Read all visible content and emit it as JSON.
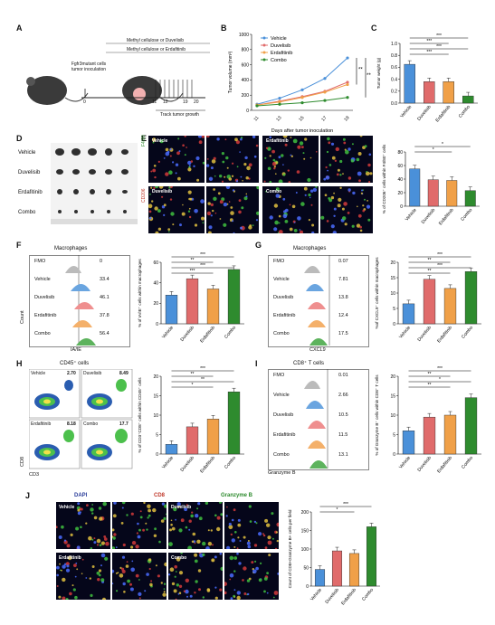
{
  "panels": {
    "A": {
      "letter": "A",
      "lines": [
        "Methyl cellulose or Duvelisib",
        "Methyl cellulose or Erdafitinib"
      ],
      "cells_label": "Fgfr3mutant cells tumor inoculation",
      "timepoints": [
        "0",
        "11",
        "12",
        "19",
        "20"
      ],
      "track_label": "Track tumor growth"
    },
    "B": {
      "letter": "B",
      "chart_data": {
        "type": "line",
        "ylabel": "Tumor volume (mm³)",
        "xlabel": "Days after tumor inoculation",
        "x": [
          "11",
          "13",
          "15",
          "17",
          "19"
        ],
        "ylim": [
          0,
          1000
        ],
        "yticks": [
          "0",
          "200",
          "400",
          "600",
          "800",
          "1000"
        ],
        "series": [
          {
            "name": "Vehicle",
            "color": "#4a90d9",
            "values": [
              80,
              160,
              270,
              420,
              690
            ]
          },
          {
            "name": "Duvelisib",
            "color": "#e06b6b",
            "values": [
              70,
              120,
              180,
              250,
              370
            ]
          },
          {
            "name": "Erdafitinib",
            "color": "#f0a048",
            "values": [
              70,
              110,
              170,
              240,
              340
            ]
          },
          {
            "name": "Combo",
            "color": "#2e8b2e",
            "values": [
              60,
              80,
              100,
              130,
              170
            ]
          }
        ],
        "sig": [
          "**",
          "***"
        ]
      }
    },
    "C": {
      "letter": "C",
      "chart_data": {
        "type": "bar",
        "ylabel": "Tumor weight (g)",
        "categories": [
          "Vehicle",
          "Duvelisib",
          "Erdafitinib",
          "Combo"
        ],
        "values": [
          0.65,
          0.36,
          0.36,
          0.12
        ],
        "ylim": [
          0,
          1.0
        ],
        "yticks": [
          "0.0",
          "0.2",
          "0.4",
          "0.6",
          "0.8",
          "1.0"
        ],
        "colors": [
          "#4a90d9",
          "#e06b6b",
          "#f0a048",
          "#2e8b2e"
        ],
        "sig": [
          "***",
          "***",
          "***",
          "***"
        ]
      }
    },
    "D": {
      "letter": "D",
      "rows": [
        "Vehicle",
        "Duvelisib",
        "Erdafitinib",
        "Combo"
      ]
    },
    "E": {
      "letter": "E",
      "stain_top": "F4/80",
      "stain_bottom": "CD206",
      "images": [
        "Vehicle",
        "Erdafitinib",
        "Duvelisib",
        "Combo"
      ],
      "chart_data": {
        "type": "bar",
        "ylabel": "% of CD206⁺ cells within F4/80⁺ cells",
        "categories": [
          "Vehicle",
          "Duvelisib",
          "Erdafitinib",
          "Combo"
        ],
        "values": [
          55,
          39,
          38,
          23
        ],
        "ylim": [
          0,
          80
        ],
        "yticks": [
          "0",
          "20",
          "40",
          "60",
          "80"
        ],
        "colors": [
          "#4a90d9",
          "#e06b6b",
          "#f0a048",
          "#2e8b2e"
        ],
        "sig": [
          "*",
          "*"
        ]
      }
    },
    "F": {
      "letter": "F",
      "title": "Macrophages",
      "xaxis": "IA/IE",
      "yaxis": "Count",
      "rows": [
        {
          "name": "FMO",
          "value": "0"
        },
        {
          "name": "Vehicle",
          "value": "33.4"
        },
        {
          "name": "Duvelisib",
          "value": "46.1"
        },
        {
          "name": "Erdafitinib",
          "value": "37.8"
        },
        {
          "name": "Combo",
          "value": "56.4"
        }
      ],
      "chart_data": {
        "type": "bar",
        "ylabel": "% of IA/IE⁺ cells within macrophages",
        "categories": [
          "Vehicle",
          "Duvelisib",
          "Erdafitinib",
          "Combo"
        ],
        "values": [
          28,
          44,
          34,
          53
        ],
        "ylim": [
          0,
          60
        ],
        "yticks": [
          "0",
          "20",
          "40",
          "60"
        ],
        "colors": [
          "#4a90d9",
          "#e06b6b",
          "#f0a048",
          "#2e8b2e"
        ],
        "sig": [
          "***",
          "**",
          "***",
          "***"
        ]
      }
    },
    "G": {
      "letter": "G",
      "title": "Macrophages",
      "xaxis": "CXCL9",
      "rows": [
        {
          "name": "FMO",
          "value": "0.07"
        },
        {
          "name": "Vehicle",
          "value": "7.81"
        },
        {
          "name": "Duvelisib",
          "value": "13.8"
        },
        {
          "name": "Erdafitinib",
          "value": "12.4"
        },
        {
          "name": "Combo",
          "value": "17.5"
        }
      ],
      "chart_data": {
        "type": "bar",
        "ylabel": "%of CXCL9⁺ cells within macrophages",
        "categories": [
          "Vehicle",
          "Duvelisib",
          "Erdafitinib",
          "Combo"
        ],
        "values": [
          6.5,
          14.5,
          11.5,
          17
        ],
        "ylim": [
          0,
          20
        ],
        "yticks": [
          "0",
          "5",
          "10",
          "15",
          "20"
        ],
        "colors": [
          "#4a90d9",
          "#e06b6b",
          "#f0a048",
          "#2e8b2e"
        ],
        "sig": [
          "***",
          "**",
          "***",
          "**"
        ]
      }
    },
    "H": {
      "letter": "H",
      "title": "CD45⁺ cells",
      "xaxis": "CD3",
      "yaxis": "CD8",
      "plots": [
        {
          "name": "Vehicle",
          "value": "2.70"
        },
        {
          "name": "Duvelisib",
          "value": "8.49"
        },
        {
          "name": "Erdafitinib",
          "value": "8.18"
        },
        {
          "name": "Combo",
          "value": "17.7"
        }
      ],
      "chart_data": {
        "type": "bar",
        "ylabel": "% of CD3⁺CD8⁺ cells within CD45⁺ cells",
        "categories": [
          "Vehicle",
          "Duvelisib",
          "Erdafitinib",
          "Combo"
        ],
        "values": [
          2.5,
          7,
          9,
          16
        ],
        "ylim": [
          0,
          20
        ],
        "yticks": [
          "0",
          "5",
          "10",
          "15",
          "20"
        ],
        "colors": [
          "#4a90d9",
          "#e06b6b",
          "#f0a048",
          "#2e8b2e"
        ],
        "sig": [
          "***",
          "**",
          "**",
          "*"
        ]
      }
    },
    "I": {
      "letter": "I",
      "title": "CD8⁺ T cells",
      "xaxis": "Granzyme B",
      "rows": [
        {
          "name": "FMO",
          "value": "0.01"
        },
        {
          "name": "Vehicle",
          "value": "2.66"
        },
        {
          "name": "Duvelisib",
          "value": "10.5"
        },
        {
          "name": "Erdafitinib",
          "value": "11.5"
        },
        {
          "name": "Combo",
          "value": "13.1"
        }
      ],
      "chart_data": {
        "type": "bar",
        "ylabel": "% of Granzyme B⁺ cells within CD8⁺ T cells",
        "categories": [
          "Vehicle",
          "Duvelisib",
          "Erdafitinib",
          "Combo"
        ],
        "values": [
          6,
          9.5,
          10,
          14.5
        ],
        "ylim": [
          0,
          20
        ],
        "yticks": [
          "0",
          "5",
          "10",
          "15",
          "20"
        ],
        "colors": [
          "#4a90d9",
          "#e06b6b",
          "#f0a048",
          "#2e8b2e"
        ],
        "sig": [
          "***",
          "**",
          "*",
          "**"
        ]
      }
    },
    "J": {
      "letter": "J",
      "stains": [
        "DAPI",
        "CD8",
        "Granzyme B"
      ],
      "images": [
        "Vehicle",
        "Duvelisib",
        "Erdafitinib",
        "Combo"
      ],
      "chart_data": {
        "type": "bar",
        "ylabel": "Count of CD8+Granzyme B+ cells per field",
        "categories": [
          "Vehicle",
          "Duvelisib",
          "Erdafitinib",
          "Combo"
        ],
        "values": [
          45,
          95,
          88,
          160
        ],
        "ylim": [
          0,
          200
        ],
        "yticks": [
          "0",
          "50",
          "100",
          "150",
          "200"
        ],
        "colors": [
          "#4a90d9",
          "#e06b6b",
          "#f0a048",
          "#2e8b2e"
        ],
        "sig": [
          "***",
          "*"
        ]
      }
    }
  }
}
